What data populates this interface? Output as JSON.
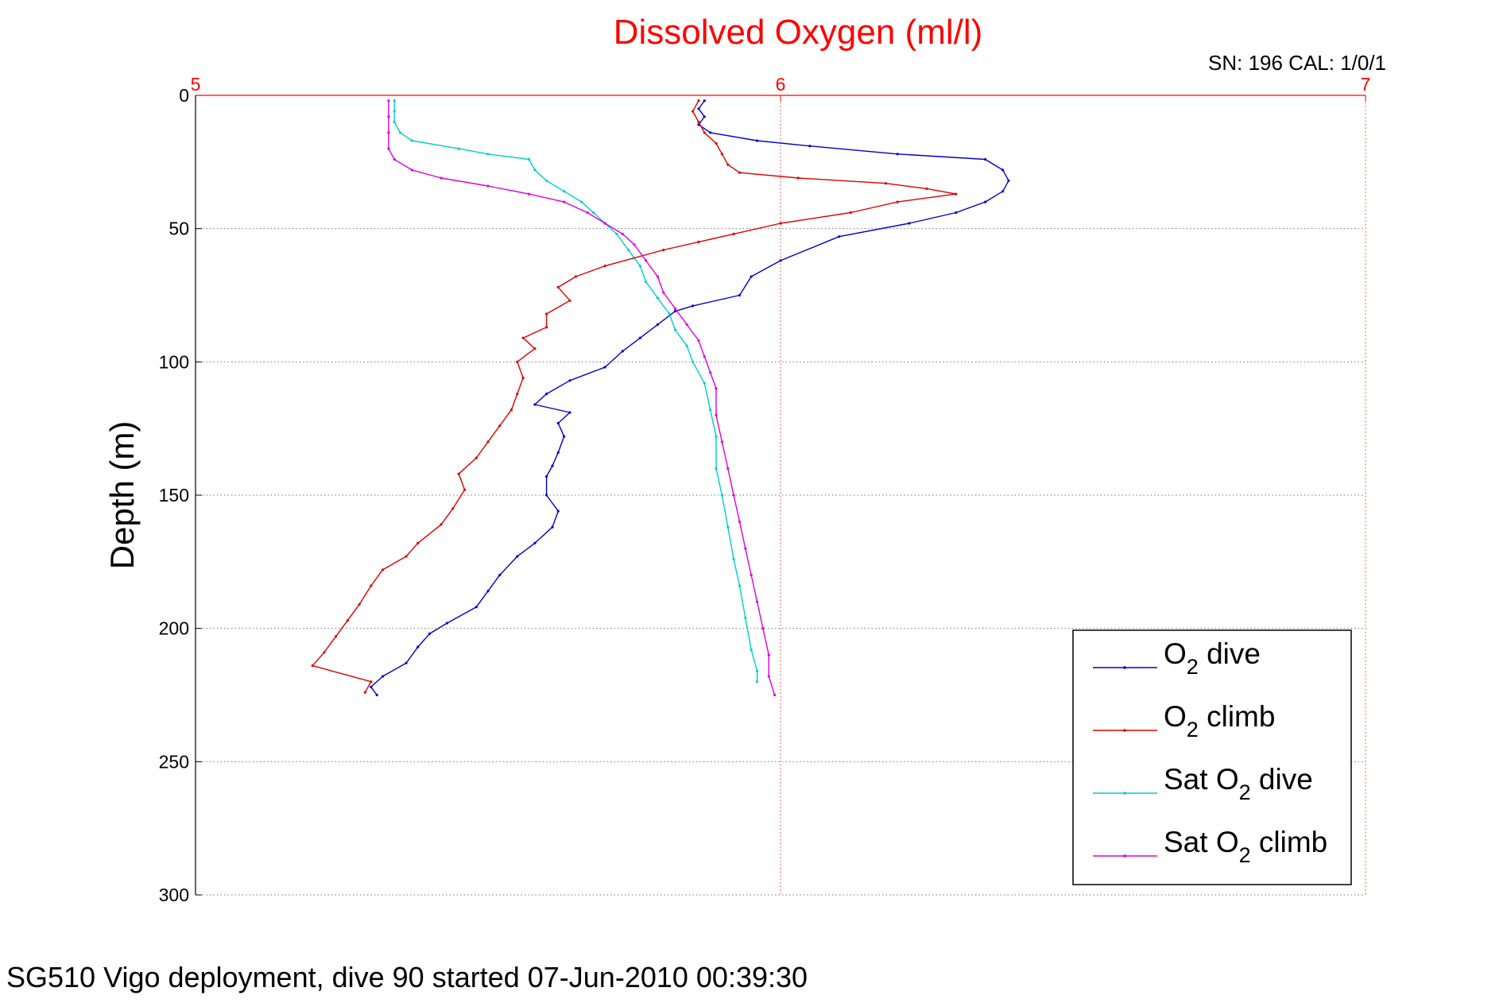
{
  "chart_data": {
    "type": "line",
    "title": "Dissolved Oxygen (ml/l)",
    "annotation": "SN: 196  CAL: 1/0/1",
    "footer": "SG510 Vigo deployment, dive 90 started 07-Jun-2010 00:39:30",
    "xlabel": "",
    "ylabel": "Depth (m)",
    "xlim": [
      5,
      7
    ],
    "ylim": [
      0,
      300
    ],
    "y_reversed": true,
    "x_axis_position": "top",
    "xticks": [
      5,
      6,
      7
    ],
    "yticks": [
      0,
      50,
      100,
      150,
      200,
      250,
      300
    ],
    "grid": true,
    "legend_position": "bottom-right",
    "series": [
      {
        "name": "O2 dive",
        "color": "#0000cc",
        "points": [
          [
            5.87,
            2
          ],
          [
            5.86,
            5
          ],
          [
            5.87,
            8
          ],
          [
            5.86,
            11
          ],
          [
            5.88,
            14
          ],
          [
            5.96,
            17
          ],
          [
            6.05,
            19
          ],
          [
            6.2,
            22
          ],
          [
            6.35,
            24
          ],
          [
            6.38,
            28
          ],
          [
            6.39,
            32
          ],
          [
            6.38,
            36
          ],
          [
            6.35,
            40
          ],
          [
            6.3,
            44
          ],
          [
            6.22,
            48
          ],
          [
            6.1,
            53
          ],
          [
            6.0,
            62
          ],
          [
            5.95,
            68
          ],
          [
            5.93,
            75
          ],
          [
            5.85,
            79
          ],
          [
            5.82,
            81
          ],
          [
            5.79,
            86
          ],
          [
            5.76,
            91
          ],
          [
            5.73,
            96
          ],
          [
            5.7,
            102
          ],
          [
            5.64,
            107
          ],
          [
            5.6,
            112
          ],
          [
            5.58,
            116
          ],
          [
            5.64,
            119
          ],
          [
            5.62,
            123
          ],
          [
            5.63,
            128
          ],
          [
            5.62,
            134
          ],
          [
            5.61,
            139
          ],
          [
            5.6,
            143
          ],
          [
            5.6,
            150
          ],
          [
            5.62,
            156
          ],
          [
            5.61,
            162
          ],
          [
            5.58,
            168
          ],
          [
            5.55,
            173
          ],
          [
            5.52,
            180
          ],
          [
            5.5,
            186
          ],
          [
            5.48,
            192
          ],
          [
            5.43,
            198
          ],
          [
            5.4,
            202
          ],
          [
            5.38,
            207
          ],
          [
            5.36,
            213
          ],
          [
            5.32,
            218
          ],
          [
            5.3,
            222
          ],
          [
            5.31,
            225
          ]
        ]
      },
      {
        "name": "O2 climb",
        "color": "#dd0000",
        "points": [
          [
            5.86,
            2
          ],
          [
            5.85,
            6
          ],
          [
            5.86,
            10
          ],
          [
            5.87,
            14
          ],
          [
            5.89,
            18
          ],
          [
            5.9,
            22
          ],
          [
            5.91,
            26
          ],
          [
            5.93,
            29
          ],
          [
            6.03,
            31
          ],
          [
            6.18,
            33
          ],
          [
            6.25,
            35
          ],
          [
            6.3,
            37
          ],
          [
            6.2,
            40
          ],
          [
            6.12,
            44
          ],
          [
            6.0,
            48
          ],
          [
            5.92,
            52
          ],
          [
            5.86,
            55
          ],
          [
            5.8,
            58
          ],
          [
            5.75,
            61
          ],
          [
            5.7,
            64
          ],
          [
            5.65,
            68
          ],
          [
            5.62,
            72
          ],
          [
            5.64,
            77
          ],
          [
            5.6,
            82
          ],
          [
            5.6,
            87
          ],
          [
            5.56,
            91
          ],
          [
            5.58,
            95
          ],
          [
            5.55,
            100
          ],
          [
            5.56,
            106
          ],
          [
            5.55,
            112
          ],
          [
            5.54,
            118
          ],
          [
            5.52,
            124
          ],
          [
            5.5,
            130
          ],
          [
            5.48,
            136
          ],
          [
            5.45,
            142
          ],
          [
            5.46,
            148
          ],
          [
            5.44,
            155
          ],
          [
            5.42,
            161
          ],
          [
            5.38,
            168
          ],
          [
            5.36,
            173
          ],
          [
            5.32,
            178
          ],
          [
            5.3,
            184
          ],
          [
            5.28,
            191
          ],
          [
            5.26,
            197
          ],
          [
            5.24,
            203
          ],
          [
            5.22,
            209
          ],
          [
            5.2,
            214
          ],
          [
            5.3,
            220
          ],
          [
            5.29,
            224
          ]
        ]
      },
      {
        "name": "Sat O2 dive",
        "color": "#00cccc",
        "points": [
          [
            5.34,
            2
          ],
          [
            5.34,
            6
          ],
          [
            5.34,
            10
          ],
          [
            5.35,
            14
          ],
          [
            5.37,
            17
          ],
          [
            5.45,
            20
          ],
          [
            5.5,
            22
          ],
          [
            5.57,
            24
          ],
          [
            5.58,
            28
          ],
          [
            5.6,
            32
          ],
          [
            5.63,
            36
          ],
          [
            5.66,
            40
          ],
          [
            5.68,
            44
          ],
          [
            5.7,
            48
          ],
          [
            5.72,
            52
          ],
          [
            5.74,
            58
          ],
          [
            5.76,
            64
          ],
          [
            5.77,
            70
          ],
          [
            5.79,
            76
          ],
          [
            5.81,
            82
          ],
          [
            5.82,
            88
          ],
          [
            5.84,
            94
          ],
          [
            5.85,
            100
          ],
          [
            5.87,
            108
          ],
          [
            5.88,
            118
          ],
          [
            5.89,
            128
          ],
          [
            5.89,
            140
          ],
          [
            5.9,
            150
          ],
          [
            5.91,
            162
          ],
          [
            5.92,
            174
          ],
          [
            5.93,
            184
          ],
          [
            5.94,
            196
          ],
          [
            5.95,
            208
          ],
          [
            5.96,
            216
          ],
          [
            5.96,
            220
          ]
        ]
      },
      {
        "name": "Sat O2 climb",
        "color": "#dd00dd",
        "points": [
          [
            5.33,
            2
          ],
          [
            5.33,
            8
          ],
          [
            5.33,
            14
          ],
          [
            5.33,
            20
          ],
          [
            5.34,
            24
          ],
          [
            5.37,
            28
          ],
          [
            5.42,
            31
          ],
          [
            5.5,
            34
          ],
          [
            5.57,
            37
          ],
          [
            5.63,
            40
          ],
          [
            5.67,
            44
          ],
          [
            5.7,
            48
          ],
          [
            5.73,
            52
          ],
          [
            5.75,
            56
          ],
          [
            5.77,
            62
          ],
          [
            5.79,
            68
          ],
          [
            5.8,
            74
          ],
          [
            5.82,
            80
          ],
          [
            5.84,
            86
          ],
          [
            5.86,
            92
          ],
          [
            5.87,
            98
          ],
          [
            5.88,
            104
          ],
          [
            5.89,
            110
          ],
          [
            5.89,
            120
          ],
          [
            5.9,
            130
          ],
          [
            5.91,
            140
          ],
          [
            5.92,
            150
          ],
          [
            5.93,
            160
          ],
          [
            5.94,
            170
          ],
          [
            5.95,
            180
          ],
          [
            5.96,
            190
          ],
          [
            5.97,
            200
          ],
          [
            5.98,
            210
          ],
          [
            5.98,
            218
          ],
          [
            5.99,
            225
          ]
        ]
      }
    ]
  },
  "legend": {
    "items": [
      {
        "prefix": "O",
        "sub": "2",
        "suffix": " dive",
        "color": "#0000cc"
      },
      {
        "prefix": "O",
        "sub": "2",
        "suffix": " climb",
        "color": "#dd0000"
      },
      {
        "prefix": "Sat O",
        "sub": "2",
        "suffix": " dive",
        "color": "#00cccc"
      },
      {
        "prefix": "Sat O",
        "sub": "2",
        "suffix": " climb",
        "color": "#dd00dd"
      }
    ]
  }
}
